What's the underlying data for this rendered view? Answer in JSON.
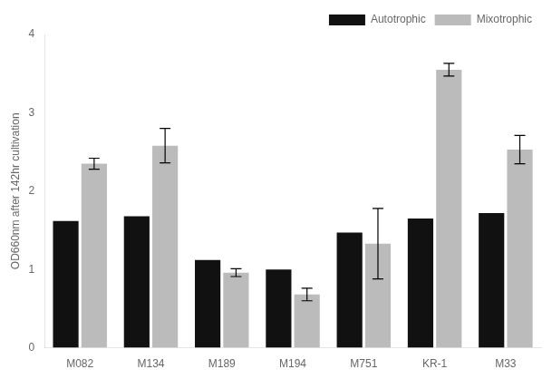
{
  "chart_data": {
    "type": "bar",
    "categories": [
      "M082",
      "M134",
      "M189",
      "M194",
      "M751",
      "KR-1",
      "M33"
    ],
    "series": [
      {
        "name": "Autotrophic",
        "color": "#111111",
        "values": [
          1.62,
          1.68,
          1.12,
          1.0,
          1.47,
          1.65,
          1.72
        ]
      },
      {
        "name": "Mixotrophic",
        "color": "#bbbbbb",
        "values": [
          2.35,
          2.58,
          0.96,
          0.68,
          1.33,
          3.55,
          2.53
        ],
        "errors": [
          0.07,
          0.22,
          0.05,
          0.08,
          0.45,
          0.08,
          0.18
        ]
      }
    ],
    "ylabel": "OD660nm after 142hr cultivation",
    "ylim": [
      0,
      4
    ],
    "yticks": [
      0,
      1,
      2,
      3,
      4
    ],
    "grid": false,
    "legend": "upper right"
  }
}
